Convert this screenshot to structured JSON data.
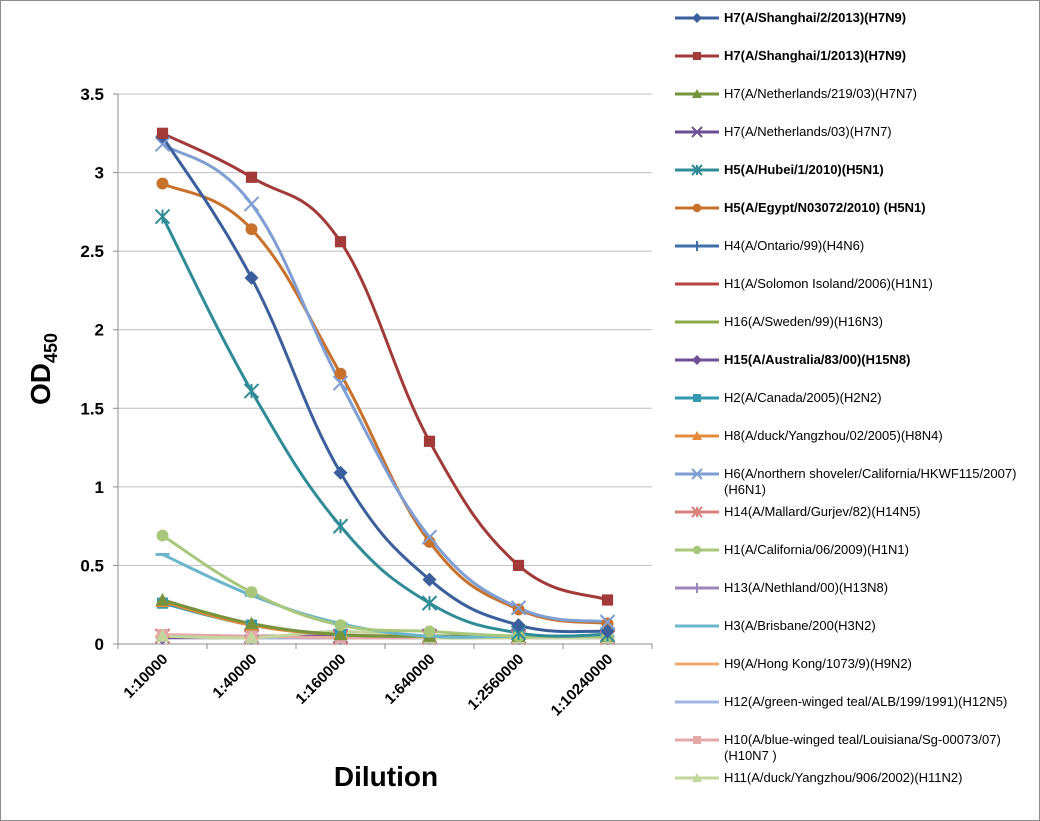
{
  "chart_data": {
    "type": "line",
    "xlabel": "Dilution",
    "ylabel_main": "OD",
    "ylabel_sub": "450",
    "categories": [
      "1:10000",
      "1:40000",
      "1:160000",
      "1:640000",
      "1:2560000",
      "1:10240000"
    ],
    "ylim": [
      0,
      3.5
    ],
    "yticks": [
      "0",
      "0.5",
      "1",
      "1.5",
      "2",
      "2.5",
      "3",
      "3.5"
    ],
    "grid": "horizontal",
    "legend_position": "right",
    "series": [
      {
        "name": "H7(A/Shanghai/2/2013)(H7N9)",
        "color": "#3b5f9c",
        "marker": "diamond",
        "bold": true,
        "values": [
          3.23,
          2.33,
          1.09,
          0.41,
          0.12,
          0.08
        ]
      },
      {
        "name": "H7(A/Shanghai/1/2013)(H7N9)",
        "color": "#a13a39",
        "marker": "square",
        "bold": true,
        "values": [
          3.25,
          2.97,
          2.56,
          1.29,
          0.5,
          0.28
        ]
      },
      {
        "name": "H7(A/Netherlands/219/03)(H7N7)",
        "color": "#77933c",
        "marker": "triangle",
        "bold": false,
        "values": [
          0.28,
          0.13,
          0.06,
          0.05,
          0.05,
          0.05
        ]
      },
      {
        "name": "H7(A/Netherlands/03)(H7N7)",
        "color": "#6a4f94",
        "marker": "x",
        "bold": false,
        "values": [
          0.05,
          0.05,
          0.05,
          0.05,
          0.05,
          0.05
        ]
      },
      {
        "name": "H5(A/Hubei/1/2010)(H5N1)",
        "color": "#2f8b96",
        "marker": "star",
        "bold": true,
        "values": [
          2.72,
          1.61,
          0.75,
          0.26,
          0.07,
          0.06
        ]
      },
      {
        "name": "H5(A/Egypt/N03072/2010) (H5N1)",
        "color": "#c8712b",
        "marker": "circle",
        "bold": true,
        "values": [
          2.93,
          2.64,
          1.72,
          0.65,
          0.22,
          0.13
        ]
      },
      {
        "name": "H4(A/Ontario/99)(H4N6)",
        "color": "#3f6fa8",
        "marker": "plus",
        "bold": false,
        "values": [
          0.05,
          0.05,
          0.04,
          0.04,
          0.04,
          0.04
        ]
      },
      {
        "name": "H1(A/Solomon Isoland/2006)(H1N1)",
        "color": "#b8433f",
        "marker": "none",
        "bold": false,
        "values": [
          0.05,
          0.05,
          0.04,
          0.04,
          0.04,
          0.04
        ]
      },
      {
        "name": "H16(A/Sweden/99)(H16N3)",
        "color": "#8aab47",
        "marker": "none",
        "bold": false,
        "values": [
          0.05,
          0.04,
          0.04,
          0.04,
          0.04,
          0.04
        ]
      },
      {
        "name": "H15(A/Australia/83/00)(H15N8)",
        "color": "#6e4f98",
        "marker": "diamond",
        "bold": true,
        "values": [
          0.04,
          0.04,
          0.04,
          0.04,
          0.04,
          0.04
        ]
      },
      {
        "name": "H2(A/Canada/2005)(H2N2)",
        "color": "#3399b3",
        "marker": "square",
        "bold": false,
        "values": [
          0.26,
          0.12,
          0.06,
          0.05,
          0.05,
          0.05
        ]
      },
      {
        "name": "H8(A/duck/Yangzhou/02/2005)(H8N4)",
        "color": "#e48a3a",
        "marker": "triangle",
        "bold": false,
        "values": [
          0.27,
          0.12,
          0.06,
          0.05,
          0.05,
          0.05
        ]
      },
      {
        "name": "H6(A/northern shoveler/California/HKWF115/2007)(H6N1)",
        "color": "#7f9ed3",
        "marker": "x",
        "bold": false,
        "values": [
          3.18,
          2.8,
          1.66,
          0.68,
          0.23,
          0.14
        ]
      },
      {
        "name": "H14(A/Mallard/Gurjev/82)(H14N5)",
        "color": "#d9807d",
        "marker": "star",
        "bold": false,
        "values": [
          0.05,
          0.04,
          0.04,
          0.04,
          0.04,
          0.04
        ]
      },
      {
        "name": "H1(A/California/06/2009)(H1N1)",
        "color": "#a9c77a",
        "marker": "circle",
        "bold": false,
        "values": [
          0.69,
          0.33,
          0.12,
          0.08,
          0.05,
          0.05
        ]
      },
      {
        "name": "H13(A/Nethland/00)(H13N8)",
        "color": "#9c86bd",
        "marker": "plus",
        "bold": false,
        "values": [
          0.05,
          0.04,
          0.04,
          0.04,
          0.04,
          0.04
        ]
      },
      {
        "name": "H3(A/Brisbane/200(H3N2)",
        "color": "#6bb5cc",
        "marker": "dash",
        "bold": false,
        "values": [
          0.57,
          0.31,
          0.13,
          0.05,
          0.05,
          0.05
        ]
      },
      {
        "name": "H9(A/Hong Kong/1073/9)(H9N2)",
        "color": "#f0a870",
        "marker": "dash",
        "bold": false,
        "values": [
          0.05,
          0.04,
          0.04,
          0.04,
          0.04,
          0.04
        ]
      },
      {
        "name": "H12(A/green-winged teal/ALB/199/1991)(H12N5)",
        "color": "#9fb5e0",
        "marker": "none",
        "bold": false,
        "values": [
          0.05,
          0.04,
          0.04,
          0.04,
          0.04,
          0.04
        ]
      },
      {
        "name": "H10(A/blue-winged teal/Louisiana/Sg-00073/07)(H10N7 )",
        "color": "#e3a8a8",
        "marker": "square",
        "bold": false,
        "values": [
          0.06,
          0.05,
          0.04,
          0.04,
          0.04,
          0.04
        ]
      },
      {
        "name": "H11(A/duck/Yangzhou/906/2002)(H11N2)",
        "color": "#c3d69b",
        "marker": "triangle",
        "bold": false,
        "values": [
          0.05,
          0.04,
          0.08,
          0.04,
          0.04,
          0.04
        ]
      }
    ]
  }
}
